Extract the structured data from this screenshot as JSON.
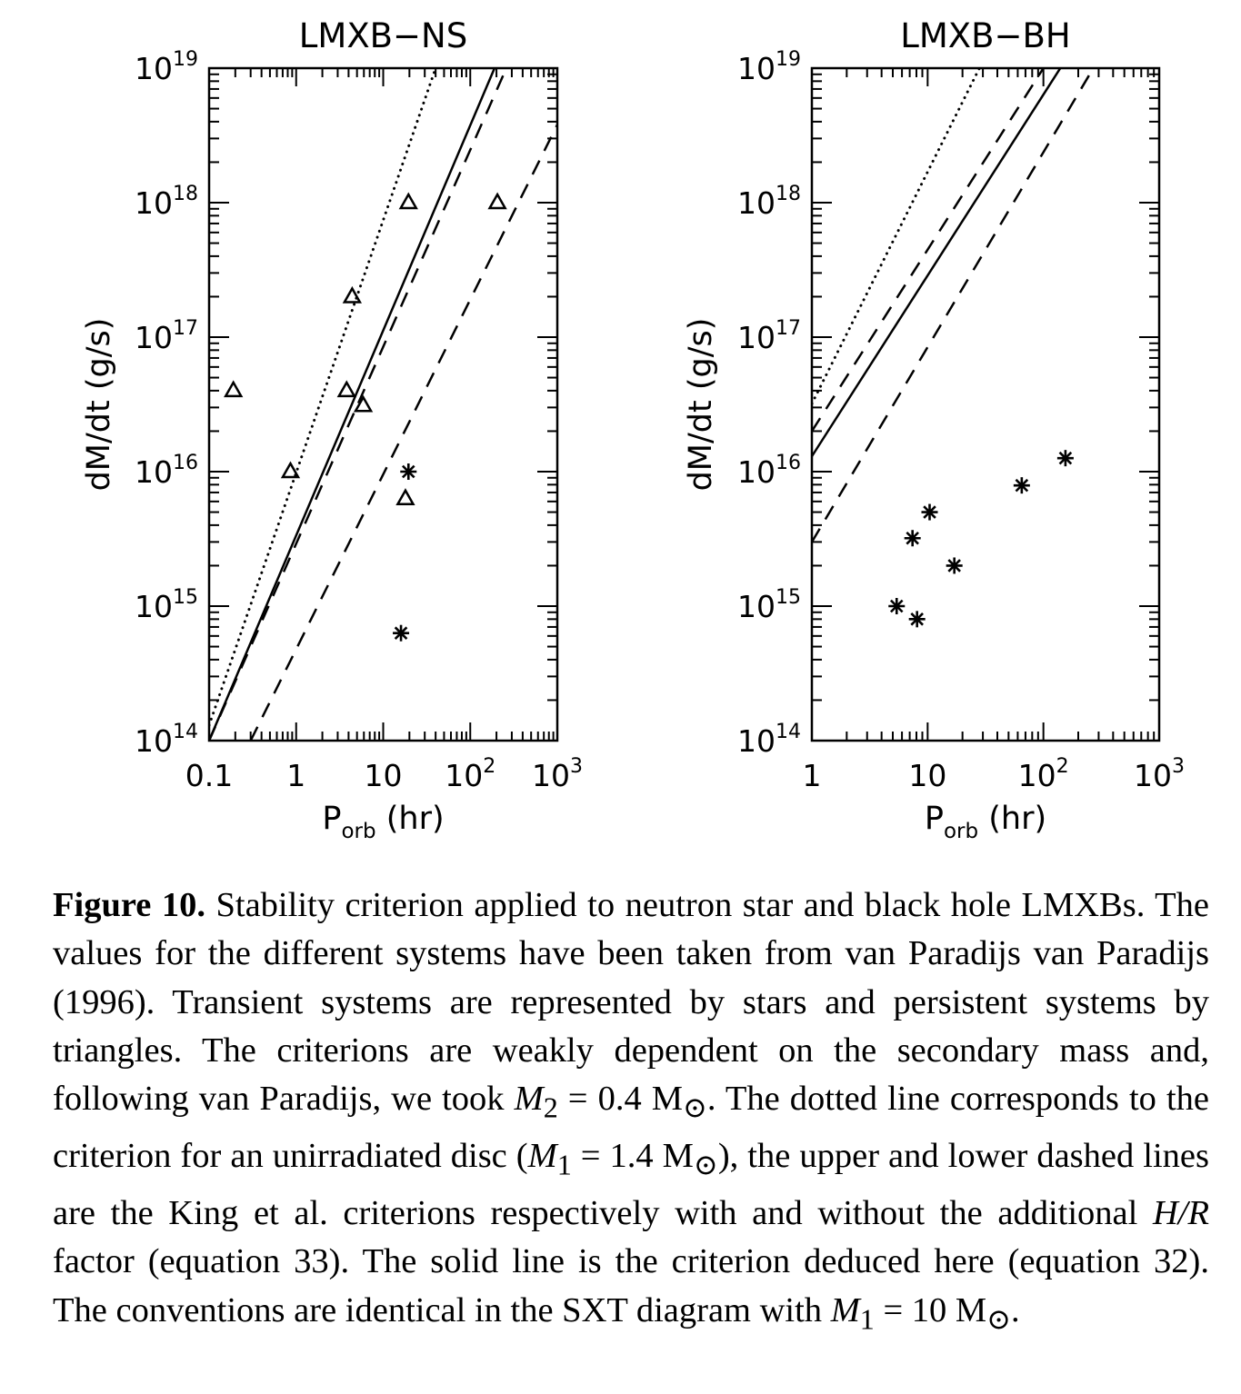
{
  "chart_data": [
    {
      "type": "scatter",
      "title": "LMXB−NS",
      "xlabel_main": "P",
      "xlabel_sub": "orb",
      "xlabel_unit": "(hr)",
      "ylabel": "dM/dt (g/s)",
      "x_scale": "log",
      "y_scale": "log",
      "xlim": [
        0.1,
        1000
      ],
      "ylim": [
        100000000000000.0,
        1e+19
      ],
      "x_ticks": [
        {
          "value": 0.1,
          "base": "0.1",
          "exp": ""
        },
        {
          "value": 1,
          "base": "1",
          "exp": ""
        },
        {
          "value": 10,
          "base": "10",
          "exp": ""
        },
        {
          "value": 100,
          "base": "10",
          "exp": "2"
        },
        {
          "value": 1000,
          "base": "10",
          "exp": "3"
        }
      ],
      "y_ticks": [
        {
          "value": 100000000000000.0,
          "base": "10",
          "exp": "14"
        },
        {
          "value": 1000000000000000.0,
          "base": "10",
          "exp": "15"
        },
        {
          "value": 1e+16,
          "base": "10",
          "exp": "16"
        },
        {
          "value": 1e+17,
          "base": "10",
          "exp": "17"
        },
        {
          "value": 1e+18,
          "base": "10",
          "exp": "18"
        },
        {
          "value": 1e+19,
          "base": "10",
          "exp": "19"
        }
      ],
      "series": [
        {
          "marker": "triangle",
          "points": [
            [
              0.19,
              4e+16
            ],
            [
              0.86,
              1e+16
            ],
            [
              4.4,
              2e+17
            ],
            [
              3.8,
              4e+16
            ],
            [
              5.9,
              3.1e+16
            ],
            [
              19.5,
              1e+18
            ],
            [
              18.0,
              6300000000000000.0
            ],
            [
              205,
              1e+18
            ]
          ]
        },
        {
          "marker": "star",
          "points": [
            [
              19.5,
              1e+16
            ],
            [
              16.0,
              630000000000000.0
            ]
          ]
        }
      ],
      "lines": [
        {
          "style": "dotted",
          "points": [
            [
              0.1,
              130000000000000.0
            ],
            [
              40,
              1e+19
            ]
          ]
        },
        {
          "style": "solid",
          "points": [
            [
              0.1,
              100000000000000.0
            ],
            [
              190,
              1e+19
            ]
          ]
        },
        {
          "style": "dashed",
          "points": [
            [
              0.1,
              100000000000000.0
            ],
            [
              260,
              1e+19
            ]
          ]
        },
        {
          "style": "dashed",
          "points": [
            [
              0.3,
              100000000000000.0
            ],
            [
              1000,
              3.8e+18
            ]
          ]
        }
      ]
    },
    {
      "type": "scatter",
      "title": "LMXB−BH",
      "xlabel_main": "P",
      "xlabel_sub": "orb",
      "xlabel_unit": "(hr)",
      "ylabel": "dM/dt (g/s)",
      "x_scale": "log",
      "y_scale": "log",
      "xlim": [
        1,
        1000
      ],
      "ylim": [
        100000000000000.0,
        1e+19
      ],
      "x_ticks": [
        {
          "value": 1,
          "base": "1",
          "exp": ""
        },
        {
          "value": 10,
          "base": "10",
          "exp": ""
        },
        {
          "value": 100,
          "base": "10",
          "exp": "2"
        },
        {
          "value": 1000,
          "base": "10",
          "exp": "3"
        }
      ],
      "y_ticks": [
        {
          "value": 100000000000000.0,
          "base": "10",
          "exp": "14"
        },
        {
          "value": 1000000000000000.0,
          "base": "10",
          "exp": "15"
        },
        {
          "value": 1e+16,
          "base": "10",
          "exp": "16"
        },
        {
          "value": 1e+17,
          "base": "10",
          "exp": "17"
        },
        {
          "value": 1e+18,
          "base": "10",
          "exp": "18"
        },
        {
          "value": 1e+19,
          "base": "10",
          "exp": "19"
        }
      ],
      "series": [
        {
          "marker": "star",
          "points": [
            [
              5.4,
              1000000000000000.0
            ],
            [
              8.1,
              800000000000000.0
            ],
            [
              7.4,
              3200000000000000.0
            ],
            [
              10.4,
              5000000000000000.0
            ],
            [
              17.0,
              2000000000000000.0
            ],
            [
              65,
              7900000000000000.0
            ],
            [
              155,
              1.26e+16
            ]
          ]
        }
      ],
      "lines": [
        {
          "style": "dotted",
          "points": [
            [
              1,
              3.2e+16
            ],
            [
              28,
              1e+19
            ]
          ]
        },
        {
          "style": "dashed",
          "points": [
            [
              1,
              2e+16
            ],
            [
              100,
              1e+19
            ]
          ]
        },
        {
          "style": "solid",
          "points": [
            [
              1,
              1.3e+16
            ],
            [
              140,
              1e+19
            ]
          ]
        },
        {
          "style": "dashed",
          "points": [
            [
              1,
              3000000000000000.0
            ],
            [
              270,
              1e+19
            ]
          ]
        }
      ]
    }
  ],
  "caption": {
    "label": "Figure 10.",
    "s1": " Stability criterion applied to neutron star and black hole LMXBs. The values for the different systems have been taken from van Paradijs van Paradijs (1996). Transient systems are represented by stars and persistent systems by triangles. The criterions are weakly dependent on the secondary mass and, following van Paradijs, we took ",
    "m2": "M",
    "m2_sub": "2",
    "eq1": " = 0.4 M",
    "sun": "⊙",
    "s2": ". The dotted line corresponds to the criterion for an unirradiated disc (",
    "m1a": "M",
    "m1a_sub": "1",
    "eq2": " = 1.4 M",
    "s3": "), the upper and lower dashed lines are the King et al. criterions respectively with and without the additional ",
    "hr": "H/R",
    "s4": " factor (equation 33). The solid line is the criterion deduced here (equation 32). The conventions are identical in the SXT diagram with ",
    "m1b": "M",
    "m1b_sub": "1",
    "eq3": " = 10 M",
    "s5": "."
  }
}
